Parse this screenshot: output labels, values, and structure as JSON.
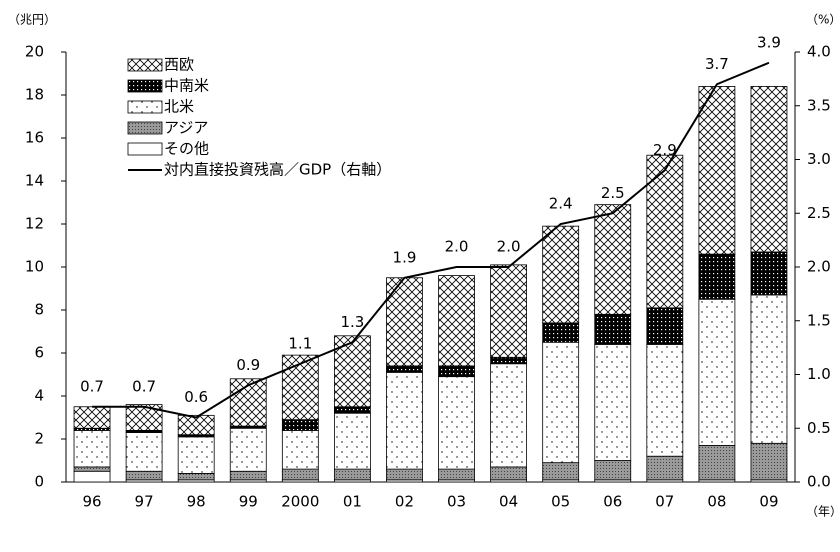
{
  "chart_data": {
    "type": "bar",
    "y_unit_label": "（兆円）",
    "y2_unit_label": "（%）",
    "x_unit_label": "（年）",
    "categories": [
      "96",
      "97",
      "98",
      "99",
      "2000",
      "01",
      "02",
      "03",
      "04",
      "05",
      "06",
      "07",
      "08",
      "09"
    ],
    "series": [
      {
        "name": "西欧",
        "color": "#000000",
        "values": [
          1.0,
          1.2,
          0.9,
          2.2,
          3.0,
          3.3,
          4.1,
          4.2,
          4.3,
          4.5,
          5.1,
          7.1,
          7.8,
          7.7
        ]
      },
      {
        "name": "中南米",
        "color": "#000000",
        "values": [
          0.1,
          0.1,
          0.1,
          0.1,
          0.5,
          0.3,
          0.3,
          0.5,
          0.3,
          0.9,
          1.4,
          1.7,
          2.1,
          2.0
        ]
      },
      {
        "name": "北米",
        "color": "#000000",
        "values": [
          1.7,
          1.8,
          1.7,
          2.0,
          1.8,
          2.6,
          4.5,
          4.3,
          4.8,
          5.6,
          5.4,
          5.2,
          6.8,
          6.9
        ]
      },
      {
        "name": "アジア",
        "color": "#808080",
        "values": [
          0.2,
          0.4,
          0.3,
          0.4,
          0.5,
          0.5,
          0.5,
          0.5,
          0.6,
          0.8,
          0.9,
          1.1,
          1.6,
          1.7
        ]
      },
      {
        "name": "その他",
        "color": "#ffffff",
        "values": [
          0.5,
          0.1,
          0.1,
          0.1,
          0.1,
          0.1,
          0.1,
          0.1,
          0.1,
          0.1,
          0.1,
          0.1,
          0.1,
          0.1
        ]
      },
      {
        "name": "対内直接投資残高／GDP（右軸）",
        "type": "line",
        "axis": "y2",
        "color": "#000000",
        "values": [
          0.7,
          0.7,
          0.6,
          0.9,
          1.1,
          1.3,
          1.9,
          2.0,
          2.0,
          2.4,
          2.5,
          2.9,
          3.7,
          3.9
        ],
        "value_labels": [
          "0.7",
          "0.7",
          "0.6",
          "0.9",
          "1.1",
          "1.3",
          "1.9",
          "2.0",
          "2.0",
          "2.4",
          "2.5",
          "2.9",
          "3.7",
          "3.9"
        ]
      }
    ],
    "ylim": [
      0,
      20
    ],
    "yticks": [
      0,
      2,
      4,
      6,
      8,
      10,
      12,
      14,
      16,
      18,
      20
    ],
    "y2lim": [
      0,
      4
    ],
    "y2ticks": [
      {
        "value": 0,
        "label": "0.0"
      },
      0.5,
      {
        "value": 1,
        "label": "1.0"
      },
      1.5,
      {
        "value": 2,
        "label": "2.0"
      },
      2.5,
      {
        "value": 3,
        "label": "3.0"
      },
      3.5,
      {
        "value": 4,
        "label": "4.0"
      }
    ],
    "legend": "upper left"
  }
}
